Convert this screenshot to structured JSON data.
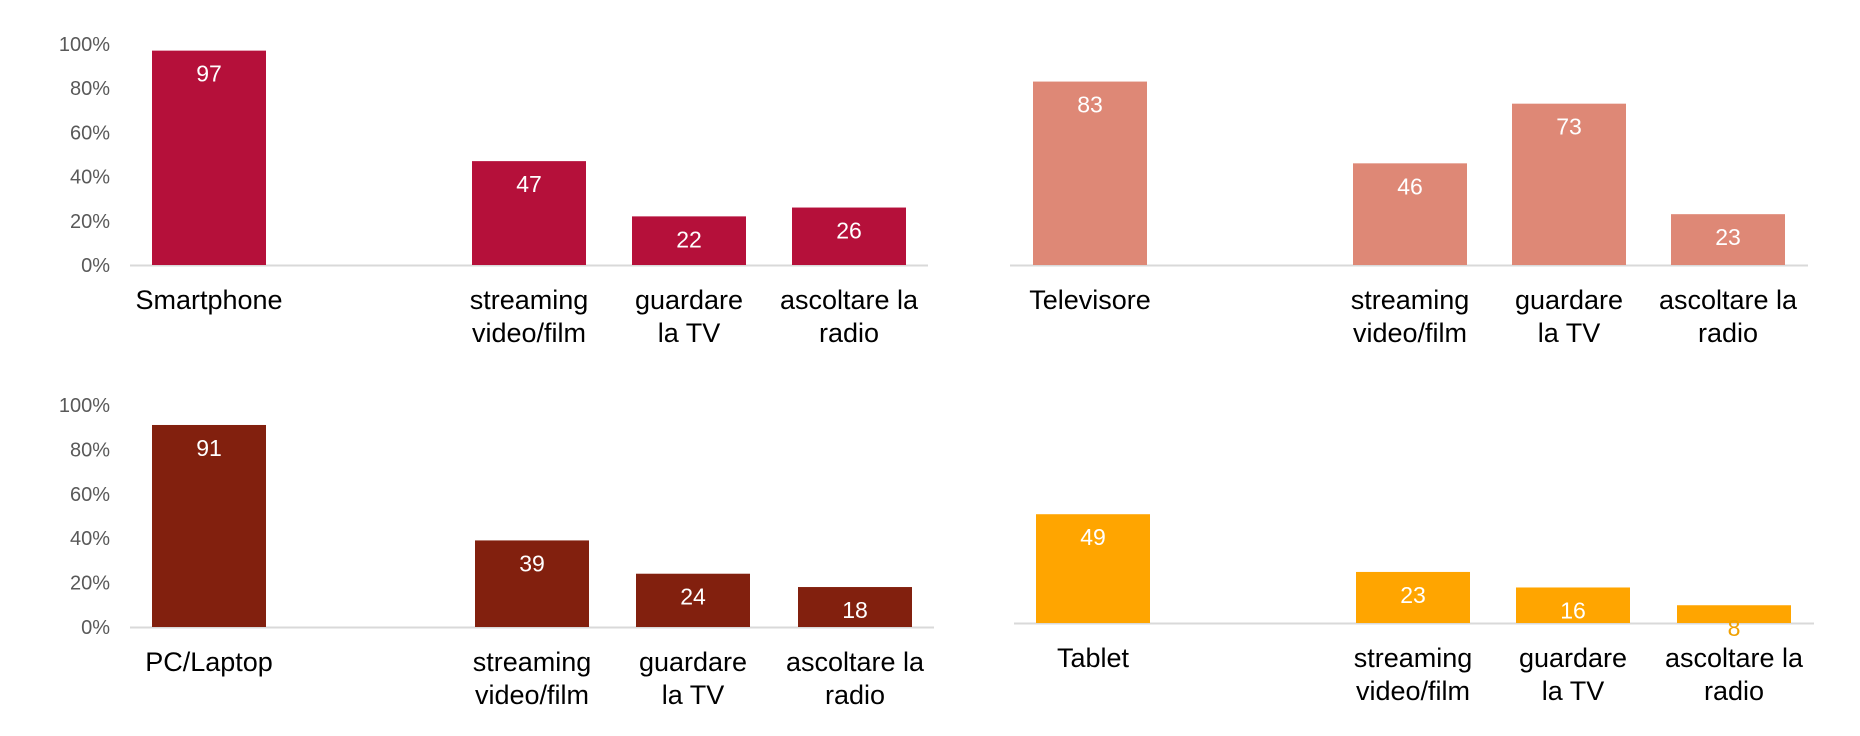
{
  "chart_data": [
    {
      "type": "bar",
      "categories": [
        "Smartphone",
        "",
        "streaming video/film",
        "guardare la TV",
        "ascoltare la radio"
      ],
      "values": [
        97,
        null,
        47,
        22,
        26
      ],
      "ylim": [
        0,
        100
      ],
      "y_ticks": [
        "0%",
        "20%",
        "40%",
        "60%",
        "80%",
        "100%"
      ],
      "color": "#B5103A",
      "label_colors": [
        "#ffffff",
        "#ffffff",
        "#ffffff",
        "#ffffff"
      ],
      "show_y_axis": true,
      "grid": false
    },
    {
      "type": "bar",
      "categories": [
        "Televisore",
        "",
        "streaming video/film",
        "guardare la TV",
        "ascoltare la radio"
      ],
      "values": [
        83,
        null,
        46,
        73,
        23
      ],
      "ylim": [
        0,
        100
      ],
      "y_ticks": [],
      "color": "#DE8876",
      "label_colors": [
        "#ffffff",
        "#ffffff",
        "#ffffff",
        "#ffffff"
      ],
      "show_y_axis": false,
      "grid": false
    },
    {
      "type": "bar",
      "categories": [
        "PC/Laptop",
        "",
        "streaming video/film",
        "guardare la TV",
        "ascoltare la radio"
      ],
      "values": [
        91,
        null,
        39,
        24,
        18
      ],
      "ylim": [
        0,
        100
      ],
      "y_ticks": [
        "0%",
        "20%",
        "40%",
        "60%",
        "80%",
        "100%"
      ],
      "color": "#82200E",
      "label_colors": [
        "#ffffff",
        "#ffffff",
        "#ffffff",
        "#ffffff"
      ],
      "show_y_axis": true,
      "grid": false
    },
    {
      "type": "bar",
      "categories": [
        "Tablet",
        "",
        "streaming video/film",
        "guardare la TV",
        "ascoltare la radio"
      ],
      "values": [
        49,
        null,
        23,
        16,
        8
      ],
      "ylim": [
        0,
        100
      ],
      "y_ticks": [],
      "color": "#FFA500",
      "label_colors": [
        "#ffffff",
        "#ffffff",
        "#ffffff",
        "#F0A000"
      ],
      "show_y_axis": false,
      "grid": false
    }
  ]
}
